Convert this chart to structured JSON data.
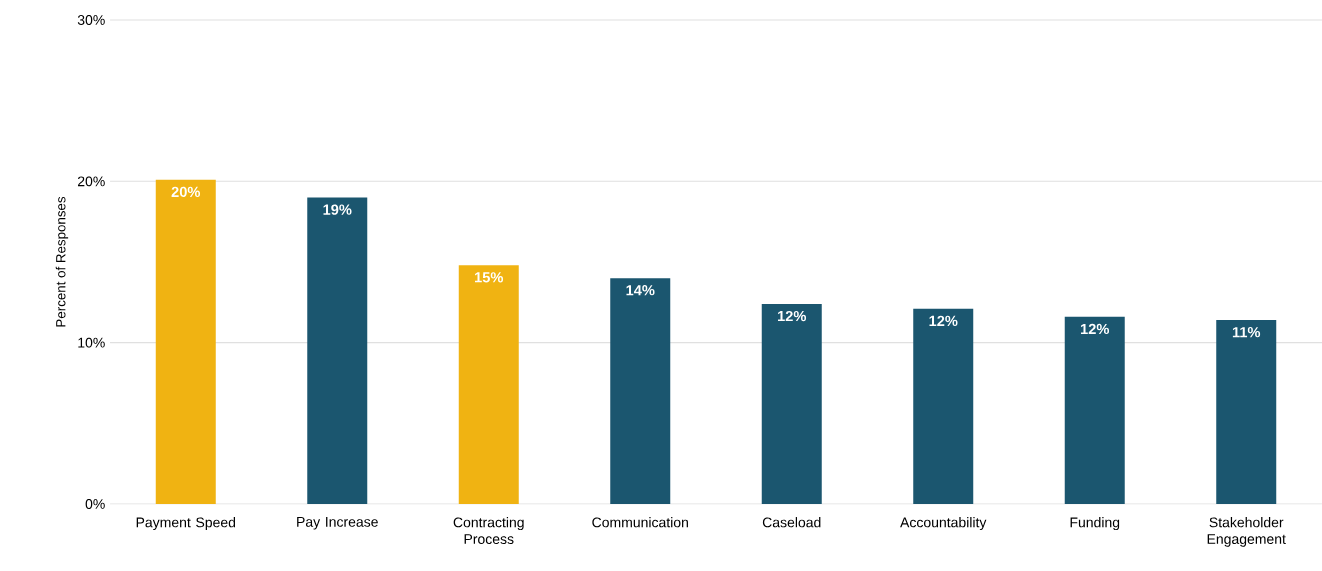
{
  "chart_data": {
    "type": "bar",
    "ylabel": "Percent of Responses",
    "categories": [
      "Payment Speed",
      "Pay Increase",
      "Contracting Process",
      "Communication",
      "Caseload",
      "Accountability",
      "Funding",
      "Stakeholder Engagement"
    ],
    "values": [
      20.1,
      19,
      14.8,
      14,
      12.4,
      12.1,
      11.6,
      11.4
    ],
    "colors": [
      "#f0b312",
      "#1b566f",
      "#f0b312",
      "#1b566f",
      "#1b566f",
      "#1b566f",
      "#1b566f",
      "#1b566f"
    ],
    "value_labels": [
      "20%",
      "19%",
      "15%",
      "14%",
      "12%",
      "12%",
      "12%",
      "11%"
    ],
    "ylim": [
      0,
      30
    ],
    "yticks": [
      {
        "value": 0,
        "label": "0%"
      },
      {
        "value": 10,
        "label": "10%"
      },
      {
        "value": 20,
        "label": "20%"
      },
      {
        "value": 30,
        "label": "30%"
      }
    ],
    "grid": "y"
  }
}
